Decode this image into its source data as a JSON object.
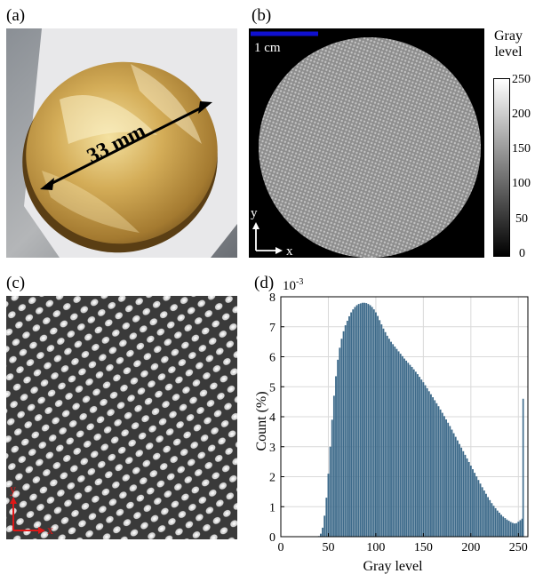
{
  "panels": {
    "a": {
      "label": "(a)",
      "dimension_text": "33 mm"
    },
    "b": {
      "label": "(b)",
      "scalebar_text": "1 cm",
      "axis_y": "y",
      "axis_x": "x",
      "colorbar_title_line1": "Gray",
      "colorbar_title_line2": "level",
      "colorbar_ticks": [
        "250",
        "200",
        "150",
        "100",
        "50",
        "0"
      ]
    },
    "c": {
      "label": "(c)",
      "axis_y": "y",
      "axis_x": "x"
    },
    "d": {
      "label": "(d)",
      "exponent_label": "10",
      "exponent_power": "-3"
    }
  },
  "colors": {
    "disk_gold": "#c8a24a",
    "bar_fill": "#3d6a8a",
    "scalebar": "#1010d0",
    "axis_red": "#e01818"
  },
  "chart_data": {
    "type": "bar",
    "xlabel": "Gray level",
    "ylabel": "Count (%)",
    "xlim": [
      0,
      260
    ],
    "ylim": [
      0,
      8
    ],
    "xticks": [
      0,
      50,
      100,
      150,
      200,
      250
    ],
    "yticks": [
      0,
      1,
      2,
      3,
      4,
      5,
      6,
      7,
      8
    ],
    "grid": true,
    "series": [
      {
        "x": [
          40,
          42,
          44,
          46,
          48,
          50,
          52,
          54,
          56,
          58,
          60,
          62,
          64,
          66,
          68,
          70,
          72,
          74,
          76,
          78,
          80,
          82,
          84,
          86,
          88,
          90,
          92,
          94,
          96,
          98,
          100,
          102,
          104,
          106,
          108,
          110,
          112,
          114,
          116,
          118,
          120,
          122,
          124,
          126,
          128,
          130,
          132,
          134,
          136,
          138,
          140,
          142,
          144,
          146,
          148,
          150,
          152,
          154,
          156,
          158,
          160,
          162,
          164,
          166,
          168,
          170,
          172,
          174,
          176,
          178,
          180,
          182,
          184,
          186,
          188,
          190,
          192,
          194,
          196,
          198,
          200,
          202,
          204,
          206,
          208,
          210,
          212,
          214,
          216,
          218,
          220,
          222,
          224,
          226,
          228,
          230,
          232,
          234,
          236,
          238,
          240,
          242,
          244,
          246,
          248,
          250,
          252,
          254,
          255
        ],
        "values": [
          0.02,
          0.1,
          0.3,
          0.7,
          1.3,
          2.1,
          3.0,
          3.9,
          4.7,
          5.35,
          5.9,
          6.3,
          6.6,
          6.85,
          7.05,
          7.2,
          7.35,
          7.48,
          7.58,
          7.66,
          7.72,
          7.76,
          7.78,
          7.8,
          7.8,
          7.79,
          7.76,
          7.72,
          7.66,
          7.58,
          7.48,
          7.36,
          7.22,
          7.08,
          6.94,
          6.82,
          6.7,
          6.6,
          6.5,
          6.42,
          6.34,
          6.26,
          6.18,
          6.1,
          6.02,
          5.94,
          5.87,
          5.8,
          5.73,
          5.66,
          5.58,
          5.5,
          5.42,
          5.33,
          5.24,
          5.15,
          5.05,
          4.95,
          4.85,
          4.75,
          4.65,
          4.55,
          4.45,
          4.35,
          4.24,
          4.13,
          4.02,
          3.91,
          3.8,
          3.69,
          3.57,
          3.45,
          3.33,
          3.21,
          3.09,
          2.97,
          2.85,
          2.73,
          2.61,
          2.49,
          2.37,
          2.25,
          2.13,
          2.01,
          1.89,
          1.77,
          1.65,
          1.54,
          1.43,
          1.32,
          1.22,
          1.12,
          1.03,
          0.95,
          0.87,
          0.8,
          0.73,
          0.67,
          0.62,
          0.57,
          0.53,
          0.49,
          0.46,
          0.44,
          0.45,
          0.5,
          0.55,
          0.6,
          4.6
        ]
      }
    ]
  }
}
